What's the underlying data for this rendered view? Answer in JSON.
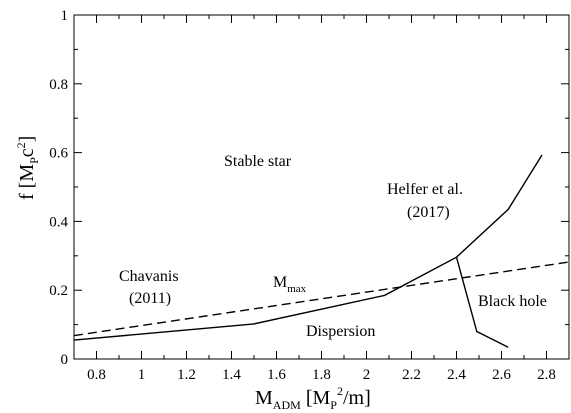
{
  "chart_data": {
    "type": "line",
    "xlim": [
      0.7,
      2.9
    ],
    "ylim": [
      0,
      1
    ],
    "x_ticks": [
      0.8,
      1,
      1.2,
      1.4,
      1.6,
      1.8,
      2,
      2.2,
      2.4,
      2.6,
      2.8
    ],
    "x_tick_labels": [
      "0.8",
      "1",
      "1.2",
      "1.4",
      "1.6",
      "1.8",
      "2",
      "2.2",
      "2.4",
      "2.6",
      "2.8"
    ],
    "y_ticks": [
      0,
      0.2,
      0.4,
      0.6,
      0.8,
      1
    ],
    "y_tick_labels": [
      "0",
      "0.2",
      "0.4",
      "0.6",
      "0.8",
      "1"
    ],
    "xlabel": {
      "main": "M",
      "sub": "ADM",
      "rest_a": " [M",
      "rest_sub": "P",
      "rest_sup": "2",
      "rest_b": "/m]"
    },
    "ylabel": {
      "main": "f [M",
      "sub": "P",
      "mid": "c",
      "sup": "2",
      "end": "]"
    },
    "series": [
      {
        "style": "solid",
        "x": [
          0.7,
          1.5,
          2.08,
          2.4,
          2.63,
          2.78
        ],
        "y": [
          0.055,
          0.102,
          0.185,
          0.296,
          0.435,
          0.593
        ]
      },
      {
        "style": "solid",
        "x": [
          2.4,
          2.49,
          2.63
        ],
        "y": [
          0.296,
          0.08,
          0.034
        ]
      },
      {
        "style": "dashed",
        "x": [
          0.7,
          2.9
        ],
        "y": [
          0.068,
          0.282
        ]
      }
    ],
    "annotations": {
      "stable": "Stable star",
      "helfer_1": "Helfer et al.",
      "helfer_2": "(2017)",
      "chavanis_1": "Chavanis",
      "chavanis_2": "(2011)",
      "mmax_main": "M",
      "mmax_sub": "max",
      "black_hole": "Black hole",
      "dispersion": "Dispersion"
    }
  }
}
